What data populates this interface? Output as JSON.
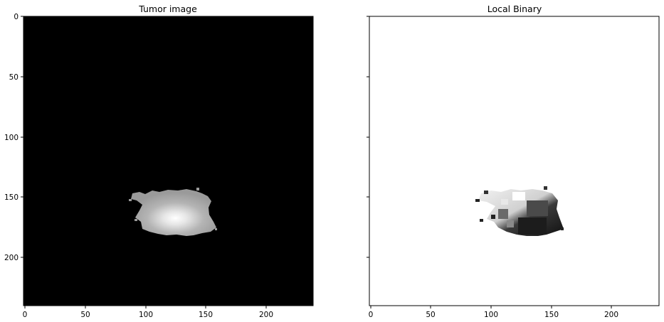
{
  "figure": {
    "panels": [
      {
        "title": "Tumor image",
        "background": "#000000",
        "x_ticks": [
          "0",
          "50",
          "100",
          "150",
          "200"
        ],
        "y_ticks": [
          "0",
          "50",
          "100",
          "150",
          "200"
        ],
        "show_y_tick_labels": true
      },
      {
        "title": "Local Binary",
        "background": "#ffffff",
        "x_ticks": [
          "0",
          "50",
          "100",
          "150",
          "200"
        ],
        "y_ticks": [
          "0",
          "50",
          "100",
          "150",
          "200"
        ],
        "show_y_tick_labels": false
      }
    ]
  }
}
